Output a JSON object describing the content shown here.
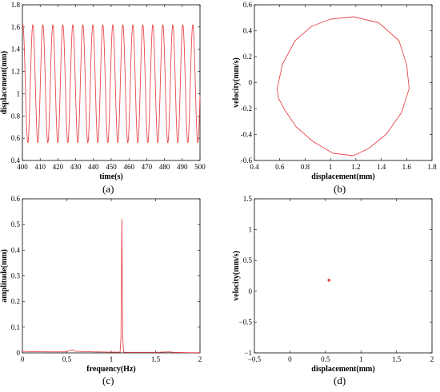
{
  "chart_data": [
    {
      "panel": "(a)",
      "type": "line",
      "xlabel": "time(s)",
      "ylabel": "displacement(mm)",
      "xlim": [
        400,
        500
      ],
      "ylim": [
        0.4,
        1.8
      ],
      "xticks": [
        "400",
        "410",
        "420",
        "430",
        "440",
        "450",
        "460",
        "470",
        "480",
        "490",
        "500"
      ],
      "yticks": [
        "0.4",
        "0.6",
        "0.8",
        "1",
        "1.2",
        "1.4",
        "1.6",
        "1.8"
      ],
      "series": [
        {
          "color": "#e8474c",
          "shape": "sinusoid",
          "min": 0.56,
          "max": 1.62,
          "period": 5.63
        }
      ]
    },
    {
      "panel": "(b)",
      "type": "line",
      "xlabel": "displacement(mm)",
      "ylabel": "velocity(mm/s)",
      "xlim": [
        0.4,
        1.8
      ],
      "ylim": [
        -0.6,
        0.7
      ],
      "xticks": [
        "0.4",
        "0.6",
        "0.8",
        "1",
        "1.2",
        "1.4",
        "1.6",
        "1.8"
      ],
      "yticks": [
        "-0.6",
        "-0.4",
        "-0.2",
        "0",
        "0.2",
        "0.4",
        "0.6"
      ],
      "series": [
        {
          "color": "#e8474c",
          "closed": true,
          "x": [
            0.58,
            0.62,
            0.72,
            0.85,
            1.0,
            1.18,
            1.38,
            1.54,
            1.6,
            1.62,
            1.56,
            1.44,
            1.3,
            1.18,
            1.02,
            0.86,
            0.73,
            0.64,
            0.59
          ],
          "y": [
            0.0,
            0.2,
            0.4,
            0.52,
            0.58,
            0.6,
            0.55,
            0.4,
            0.2,
            0.0,
            -0.2,
            -0.38,
            -0.5,
            -0.56,
            -0.54,
            -0.44,
            -0.32,
            -0.18,
            -0.08
          ]
        }
      ]
    },
    {
      "panel": "(c)",
      "type": "line",
      "xlabel": "frequency(Hz)",
      "ylabel": "amplitude(mm)",
      "xlim": [
        0,
        2
      ],
      "ylim": [
        0,
        0.6
      ],
      "xticks": [
        "0",
        "0.5",
        "1",
        "1.5",
        "2"
      ],
      "yticks": [
        "0",
        "0.1",
        "0.2",
        "0.3",
        "0.4",
        "0.5",
        "0.6"
      ],
      "series": [
        {
          "color": "#e8474c",
          "x": [
            0,
            0.1,
            0.3,
            0.5,
            0.53,
            0.56,
            0.6,
            0.8,
            1.0,
            1.1,
            1.11,
            1.12,
            1.13,
            1.14,
            1.2,
            1.5,
            1.66,
            1.7,
            1.9,
            2.0
          ],
          "y": [
            0.006,
            0.005,
            0.004,
            0.004,
            0.009,
            0.012,
            0.006,
            0.004,
            0.003,
            0.003,
            0.06,
            0.52,
            0.06,
            0.003,
            0.002,
            0.002,
            0.004,
            0.002,
            0.001,
            0.001
          ]
        }
      ]
    },
    {
      "panel": "(d)",
      "type": "scatter",
      "xlabel": "displacement(mm)",
      "ylabel": "velocity(mm/s)",
      "xlim": [
        -0.5,
        2
      ],
      "ylim": [
        -1,
        1.5
      ],
      "xticks": [
        "−0.5",
        "0",
        "0.5",
        "1",
        "1.5",
        "2"
      ],
      "yticks": [
        "−1",
        "−0.5",
        "0",
        "0.5",
        "1",
        "1.5"
      ],
      "series": [
        {
          "color": "#e8474c",
          "x": [
            0.55
          ],
          "y": [
            0.18
          ]
        }
      ]
    }
  ],
  "labels": {
    "a": "(a)",
    "b": "(b)",
    "c": "(c)",
    "d": "(d)"
  },
  "colors": {
    "line": "#e8474c",
    "axis": "#000000"
  }
}
